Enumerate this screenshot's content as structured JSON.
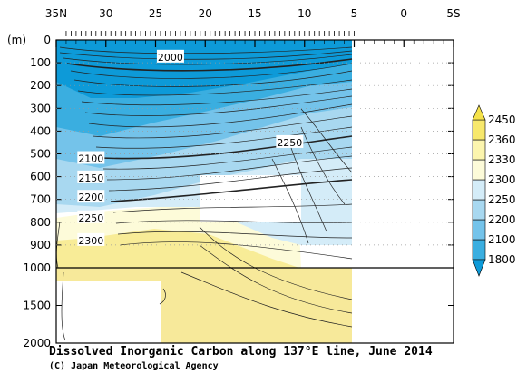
{
  "chart_data": {
    "type": "heatmap",
    "title": "Dissolved Inorganic Carbon along 137°E line, June 2014",
    "credit": "(C) Japan Meteorological Agency",
    "x_tick_labels": [
      "35N",
      "30",
      "25",
      "20",
      "15",
      "10",
      "5",
      "0",
      "5S"
    ],
    "x_tick_values": [
      35,
      30,
      25,
      20,
      15,
      10,
      5,
      0,
      -5
    ],
    "xlim": [
      35,
      -5
    ],
    "ylabel": "(m)",
    "y_ticks_upper": [
      0,
      100,
      200,
      300,
      400,
      500,
      600,
      700,
      800,
      900,
      1000
    ],
    "y_ticks_lower": [
      1500,
      2000
    ],
    "ylim": [
      0,
      2000
    ],
    "y_break": 1000,
    "colorbar": {
      "levels": [
        1800,
        2100,
        2200,
        2250,
        2300,
        2330,
        2360,
        2450
      ],
      "colors": [
        "#0d9ad8",
        "#3aaee0",
        "#74c3ea",
        "#a8d8f0",
        "#d4ecf8",
        "#fdfbd9",
        "#fcf5ae",
        "#f7e86c"
      ]
    },
    "contour_labels": [
      {
        "text": "2000",
        "lat": 23.5,
        "depth": 75
      },
      {
        "text": "2100",
        "lat": 31.5,
        "depth": 520
      },
      {
        "text": "2150",
        "lat": 31.5,
        "depth": 605
      },
      {
        "text": "2200",
        "lat": 31.5,
        "depth": 690
      },
      {
        "text": "2250",
        "lat": 31.5,
        "depth": 780
      },
      {
        "text": "2300",
        "lat": 31.5,
        "depth": 880
      },
      {
        "text": "2250",
        "lat": 11.5,
        "depth": 450
      }
    ]
  }
}
